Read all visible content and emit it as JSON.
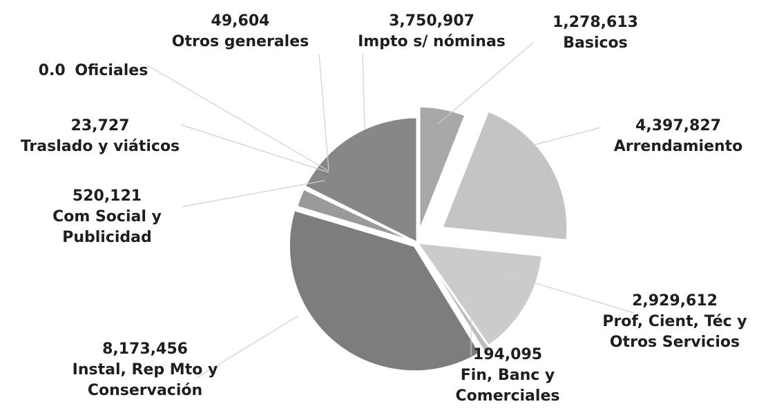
{
  "chart_data": {
    "type": "pie",
    "exploded": true,
    "slices": [
      {
        "name": "Basicos",
        "value_label": "1,278,613",
        "value": 1278613,
        "color": "#a8a8a8"
      },
      {
        "name": "Arrendamiento",
        "value_label": "4,397,827",
        "value": 4397827,
        "color": "#c4c4c4"
      },
      {
        "name": "Prof, Cient, Téc y Otros Servicios",
        "value_label": "2,929,612",
        "value": 2929612,
        "color": "#cbcbcb"
      },
      {
        "name": "Fin, Banc y Comerciales",
        "value_label": "194,095",
        "value": 194095,
        "color": "#bdbdbd"
      },
      {
        "name": "Instal, Rep Mto y Conservación",
        "value_label": "8,173,456",
        "value": 8173456,
        "color": "#7d7d7d"
      },
      {
        "name": "Com Social y Publicidad",
        "value_label": "520,121",
        "value": 520121,
        "color": "#9a9a9a"
      },
      {
        "name": "Traslado y viáticos",
        "value_label": "23,727",
        "value": 23727,
        "color": "#8a8a8a"
      },
      {
        "name": "Oficiales",
        "value_label": "0.0",
        "value": 0,
        "color": "#8a8a8a"
      },
      {
        "name": "Otros generales",
        "value_label": "49,604",
        "value": 49604,
        "color": "#8a8a8a"
      },
      {
        "name": "Impto s/ nóminas",
        "value_label": "3,750,907",
        "value": 3750907,
        "color": "#878787"
      }
    ]
  }
}
